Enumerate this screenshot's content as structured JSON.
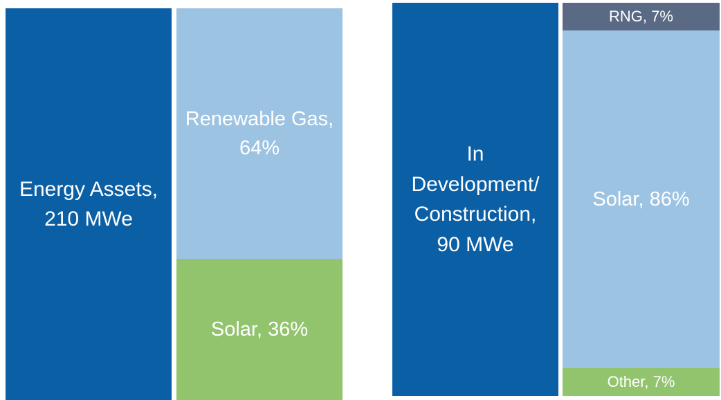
{
  "chart_data": [
    {
      "type": "mosaic",
      "title": "Energy Assets,\n210 MWe",
      "title_color": "#0b5fa5",
      "labels": [
        "Renewable Gas,\n64%",
        "Solar, 36%"
      ],
      "values": [
        64,
        36
      ],
      "colors": [
        "#9dc3e3",
        "#92c46d"
      ]
    },
    {
      "type": "mosaic",
      "title": "In\nDevelopment/\nConstruction,\n90 MWe",
      "title_color": "#0b5fa5",
      "labels": [
        "RNG, 7%",
        "Solar, 86%",
        "Other, 7%"
      ],
      "values": [
        7,
        86,
        7
      ],
      "colors": [
        "#5a6a85",
        "#9dc3e3",
        "#92c46d"
      ]
    }
  ]
}
